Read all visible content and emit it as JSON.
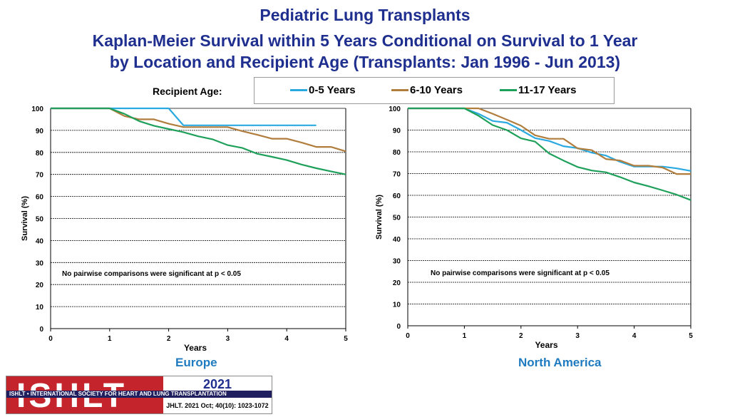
{
  "titles": {
    "line1": "Pediatric Lung Transplants",
    "line2": "Kaplan-Meier Survival within 5 Years Conditional on Survival to 1 Year",
    "line3": "by Location and Recipient Age (Transplants: Jan 1996 - Jun 2013)"
  },
  "legend": {
    "label": "Recipient Age:",
    "items": [
      {
        "name": "0-5 Years",
        "color": "#29a9e0"
      },
      {
        "name": "6-10 Years",
        "color": "#b07d3c"
      },
      {
        "name": "11-17 Years",
        "color": "#1ea05a"
      }
    ]
  },
  "chart_data": [
    {
      "type": "line",
      "region": "Europe",
      "xlabel": "Years",
      "ylabel": "Survival (%)",
      "xlim": [
        0,
        5
      ],
      "ylim": [
        0,
        100
      ],
      "xticks": [
        0,
        1,
        2,
        3,
        4,
        5
      ],
      "yticks": [
        0,
        10,
        20,
        30,
        40,
        50,
        60,
        70,
        80,
        90,
        100
      ],
      "annotation": "No pairwise comparisons were significant at p < 0.05",
      "series": [
        {
          "name": "0-5 Years",
          "color": "#29a9e0",
          "x": [
            0,
            1,
            2,
            2.25,
            4.5
          ],
          "y": [
            100,
            100,
            100,
            92.3,
            92.3
          ]
        },
        {
          "name": "6-10 Years",
          "color": "#b07d3c",
          "x": [
            0,
            1,
            1.25,
            1.5,
            1.75,
            2,
            2.25,
            2.5,
            2.75,
            3,
            3.25,
            3.5,
            3.75,
            4,
            4.25,
            4.5,
            4.75,
            5
          ],
          "y": [
            100,
            100,
            96.5,
            95,
            95,
            93,
            91.5,
            91.5,
            91.5,
            91.5,
            89.6,
            88,
            86.2,
            86.2,
            84.5,
            82.5,
            82.5,
            80.5
          ]
        },
        {
          "name": "11-17 Years",
          "color": "#1ea05a",
          "x": [
            0,
            1,
            1.25,
            1.5,
            1.75,
            2,
            2.25,
            2.5,
            2.75,
            3,
            3.25,
            3.5,
            3.75,
            4,
            4.25,
            4.5,
            4.75,
            5
          ],
          "y": [
            100,
            100,
            97.5,
            94.2,
            92.1,
            90.6,
            89.2,
            87.3,
            85.9,
            83.3,
            82,
            79.4,
            78,
            76.5,
            74.5,
            72.8,
            71.4,
            70
          ]
        }
      ]
    },
    {
      "type": "line",
      "region": "North America",
      "xlabel": "Years",
      "ylabel": "Survival (%)",
      "xlim": [
        0,
        5
      ],
      "ylim": [
        0,
        100
      ],
      "xticks": [
        0,
        1,
        2,
        3,
        4,
        5
      ],
      "yticks": [
        0,
        10,
        20,
        30,
        40,
        50,
        60,
        70,
        80,
        90,
        100
      ],
      "annotation": "No pairwise comparisons were significant at p < 0.05",
      "series": [
        {
          "name": "0-5 Years",
          "color": "#29a9e0",
          "x": [
            0,
            1,
            1.25,
            1.5,
            1.75,
            2,
            2.25,
            2.5,
            2.75,
            3,
            3.25,
            3.5,
            3.75,
            4,
            4.25,
            4.5,
            4.75,
            5
          ],
          "y": [
            100,
            100,
            97.5,
            94.2,
            93.4,
            90,
            86.3,
            85,
            82.6,
            81.7,
            79.6,
            78.3,
            75.4,
            73.2,
            73.2,
            73.2,
            72.4,
            71.2
          ]
        },
        {
          "name": "6-10 Years",
          "color": "#b07d3c",
          "x": [
            0,
            1,
            1.25,
            1.5,
            1.75,
            2,
            2.25,
            2.5,
            2.75,
            3,
            3.25,
            3.5,
            3.75,
            4,
            4.25,
            4.5,
            4.75,
            5
          ],
          "y": [
            100,
            100,
            100,
            97.5,
            94.8,
            92,
            87.6,
            86,
            86,
            81.6,
            80.8,
            76.7,
            76,
            73.6,
            73.6,
            72.8,
            69.8,
            69.8
          ]
        },
        {
          "name": "11-17 Years",
          "color": "#1ea05a",
          "x": [
            0,
            1,
            1.25,
            1.5,
            1.75,
            2,
            2.25,
            2.5,
            2.75,
            3,
            3.25,
            3.5,
            3.75,
            4,
            4.25,
            4.5,
            4.75,
            5
          ],
          "y": [
            100,
            100,
            96.6,
            92.3,
            90,
            86.2,
            84.7,
            79.2,
            76,
            73,
            71.4,
            70.6,
            68.4,
            65.9,
            64.2,
            62.3,
            60.3,
            57.8
          ]
        }
      ]
    }
  ],
  "footer": {
    "logo": "ISHLT",
    "society": "ISHLT • INTERNATIONAL SOCIETY FOR HEART AND LUNG TRANSPLANTATION",
    "year": "2021",
    "citation": "JHLT. 2021 Oct; 40(10): 1023-1072"
  }
}
